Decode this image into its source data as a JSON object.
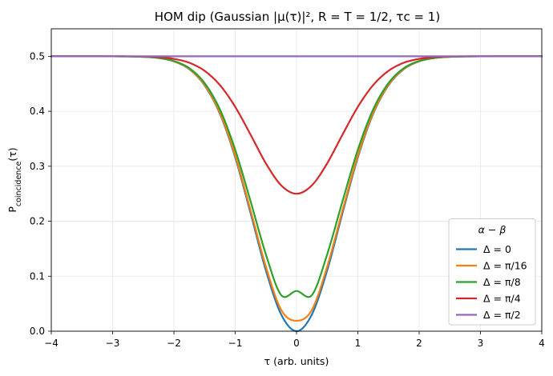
{
  "chart_data": {
    "type": "line",
    "title": "HOM dip (Gaussian |μ(τ)|²,  R = T = 1/2, τc = 1)",
    "xlabel": "τ (arb. units)",
    "ylabel": "P_coincidence(τ)",
    "xlim": [
      -4,
      4
    ],
    "ylim": [
      0,
      0.55
    ],
    "xticks": [
      -4,
      -3,
      -2,
      -1,
      0,
      1,
      2,
      3,
      4
    ],
    "xtick_labels": [
      "−4",
      "−3",
      "−2",
      "−1",
      "0",
      "1",
      "2",
      "3",
      "4"
    ],
    "yticks": [
      0,
      0.1,
      0.2,
      0.3,
      0.4,
      0.5
    ],
    "ytick_labels": [
      "0.0",
      "0.1",
      "0.2",
      "0.3",
      "0.4",
      "0.5"
    ],
    "grid": true,
    "legend_title": "α − β",
    "legend_location": "lower-right",
    "x": [
      -4,
      -3.5,
      -3,
      -2.75,
      -2.5,
      -2.25,
      -2,
      -1.75,
      -1.5,
      -1.25,
      -1,
      -0.75,
      -0.5,
      -0.25,
      0,
      0.25,
      0.5,
      0.75,
      1,
      1.25,
      1.5,
      1.75,
      2,
      2.25,
      2.5,
      2.75,
      3,
      3.5,
      4
    ],
    "series": [
      {
        "name": "Δ = 0",
        "color": "#1f77b4",
        "values": [
          0.5,
          0.5,
          0.4999,
          0.4997,
          0.499,
          0.4968,
          0.4908,
          0.4767,
          0.4473,
          0.3955,
          0.3161,
          0.2151,
          0.1106,
          0.0303,
          0.0,
          0.0303,
          0.1106,
          0.2151,
          0.3161,
          0.3955,
          0.4473,
          0.4767,
          0.4908,
          0.4968,
          0.499,
          0.4997,
          0.4999,
          0.5,
          0.5
        ]
      },
      {
        "name": "Δ = π/16",
        "color": "#ff7f0e",
        "values": [
          0.5,
          0.5,
          0.4999,
          0.4997,
          0.499,
          0.4969,
          0.491,
          0.4772,
          0.4483,
          0.3974,
          0.3194,
          0.2201,
          0.1175,
          0.0387,
          0.019,
          0.0387,
          0.1175,
          0.2201,
          0.3194,
          0.3974,
          0.4483,
          0.4772,
          0.491,
          0.4969,
          0.499,
          0.4997,
          0.4999,
          0.5,
          0.5
        ]
      },
      {
        "name": "Δ = π/8",
        "color": "#2ca02c",
        "values": [
          0.5,
          0.5,
          0.4999,
          0.4997,
          0.4991,
          0.4971,
          0.4916,
          0.4785,
          0.4513,
          0.4034,
          0.3299,
          0.2365,
          0.1397,
          0.0656,
          0.0732,
          0.0656,
          0.1397,
          0.2365,
          0.3299,
          0.4034,
          0.4513,
          0.4785,
          0.4916,
          0.4971,
          0.4991,
          0.4997,
          0.4999,
          0.5,
          0.5
        ]
      },
      {
        "name": "Δ = π/4",
        "color": "#d62728",
        "values": [
          0.5,
          0.5,
          0.5,
          0.4999,
          0.4995,
          0.4984,
          0.4954,
          0.4883,
          0.4736,
          0.4477,
          0.4081,
          0.3576,
          0.3053,
          0.2652,
          0.25,
          0.2652,
          0.3053,
          0.3576,
          0.4081,
          0.4477,
          0.4736,
          0.4883,
          0.4954,
          0.4984,
          0.4995,
          0.4999,
          0.5,
          0.5,
          0.5
        ]
      },
      {
        "name": "Δ = π/2",
        "color": "#9467bd",
        "values": [
          0.5,
          0.5,
          0.5,
          0.5,
          0.5,
          0.5,
          0.5,
          0.5,
          0.5,
          0.5,
          0.5,
          0.5,
          0.5,
          0.5,
          0.5,
          0.5,
          0.5,
          0.5,
          0.5,
          0.5,
          0.5,
          0.5,
          0.5,
          0.5,
          0.5,
          0.5,
          0.5,
          0.5,
          0.5
        ]
      }
    ]
  }
}
